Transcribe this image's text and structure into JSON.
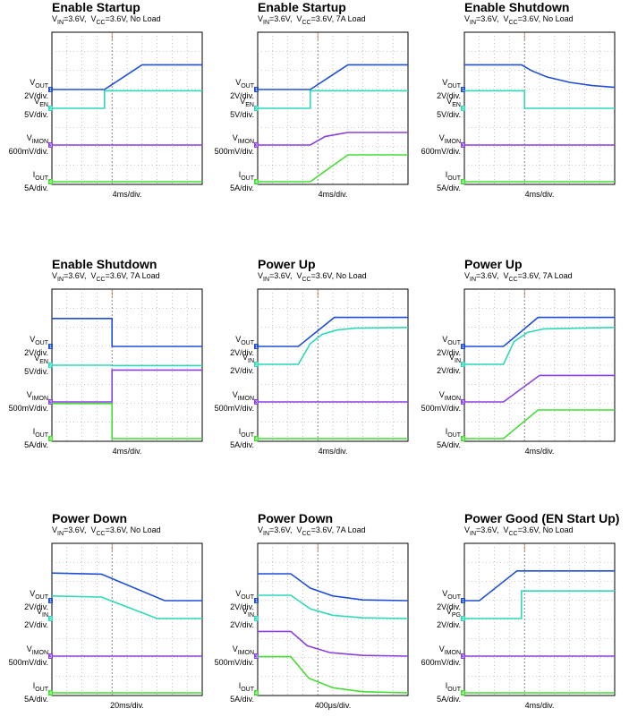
{
  "chart_data": [
    {
      "type": "line",
      "title": "Enable Startup",
      "subtitle": {
        "vin_sym": "V",
        "vin_sub": "IN",
        "vin_rest": "=3.6V,",
        "vcc_sym": "V",
        "vcc_sub": "CC",
        "vcc_rest": "=3.6V, No Load"
      },
      "xlabel": "4ms/div.",
      "x_divisions": 10,
      "channels": [
        {
          "sym": "V",
          "sub": "OUT",
          "scale": "2V/div.",
          "color": "#1f4fd6",
          "marker": "1",
          "level": 0.1,
          "points": [
            [
              0,
              0.1
            ],
            [
              3.5,
              0.1
            ],
            [
              6.0,
              0.79
            ],
            [
              10,
              0.79
            ]
          ]
        },
        {
          "sym": "V",
          "sub": "EN",
          "scale": "5V/div.",
          "color": "#2fd9b8",
          "marker": "2",
          "level": 0.31,
          "points": [
            [
              0,
              0.31
            ],
            [
              3.5,
              0.31
            ],
            [
              3.5,
              0.8
            ],
            [
              10,
              0.8
            ]
          ]
        },
        {
          "sym": "V",
          "sub": "IMON",
          "scale": "600mV/div.",
          "color": "#8a3fe0",
          "marker": "3",
          "level": 0.62,
          "points": [
            [
              0,
              0.62
            ],
            [
              10,
              0.62
            ]
          ]
        },
        {
          "sym": "I",
          "sub": "OUT",
          "scale": "5A/div.",
          "color": "#44dd33",
          "marker": "4",
          "level": 0.95,
          "points": [
            [
              0,
              0.95
            ],
            [
              10,
              0.95
            ]
          ]
        }
      ]
    },
    {
      "type": "line",
      "title": "Enable Startup",
      "subtitle": {
        "vin_sym": "V",
        "vin_sub": "IN",
        "vin_rest": "=3.6V,",
        "vcc_sym": "V",
        "vcc_sub": "CC",
        "vcc_rest": "=3.6V, 7A Load"
      },
      "xlabel": "4ms/div.",
      "x_divisions": 10,
      "channels": [
        {
          "sym": "V",
          "sub": "OUT",
          "scale": "2V/div.",
          "color": "#1f4fd6",
          "marker": "1",
          "level": 0.1,
          "points": [
            [
              0,
              0.1
            ],
            [
              3.5,
              0.1
            ],
            [
              6.0,
              0.79
            ],
            [
              10,
              0.79
            ]
          ]
        },
        {
          "sym": "V",
          "sub": "EN",
          "scale": "5V/div.",
          "color": "#2fd9b8",
          "marker": "2",
          "level": 0.31,
          "points": [
            [
              0,
              0.31
            ],
            [
              3.5,
              0.31
            ],
            [
              3.5,
              0.8
            ],
            [
              10,
              0.8
            ]
          ]
        },
        {
          "sym": "V",
          "sub": "IMON",
          "scale": "500mV/div.",
          "color": "#8a3fe0",
          "marker": "3",
          "level": 0.62,
          "points": [
            [
              0,
              0.62
            ],
            [
              3.5,
              0.62
            ],
            [
              4.5,
              0.86
            ],
            [
              6.0,
              0.97
            ],
            [
              10,
              0.97
            ]
          ]
        },
        {
          "sym": "I",
          "sub": "OUT",
          "scale": "5A/div.",
          "color": "#44dd33",
          "marker": "4",
          "level": 0.95,
          "points": [
            [
              0,
              0.95
            ],
            [
              3.5,
              0.95
            ],
            [
              6.0,
              1.7
            ],
            [
              10,
              1.7
            ]
          ]
        }
      ]
    },
    {
      "type": "line",
      "title": "Enable Shutdown",
      "subtitle": {
        "vin_sym": "V",
        "vin_sub": "IN",
        "vin_rest": "=3.6V,",
        "vcc_sym": "V",
        "vcc_sub": "CC",
        "vcc_rest": "=3.6V, No Load"
      },
      "xlabel": "4ms/div.",
      "x_divisions": 10,
      "channels": [
        {
          "sym": "V",
          "sub": "OUT",
          "scale": "2V/div.",
          "color": "#1f4fd6",
          "marker": "1",
          "level": 0.1,
          "points": [
            [
              0,
              0.79
            ],
            [
              3.8,
              0.79
            ],
            [
              4.5,
              0.62
            ],
            [
              5.5,
              0.45
            ],
            [
              7,
              0.3
            ],
            [
              8.5,
              0.21
            ],
            [
              10,
              0.16
            ]
          ]
        },
        {
          "sym": "V",
          "sub": "EN",
          "scale": "5V/div.",
          "color": "#2fd9b8",
          "marker": "2",
          "level": 0.31,
          "points": [
            [
              0,
              0.8
            ],
            [
              4.0,
              0.8
            ],
            [
              4.0,
              0.31
            ],
            [
              10,
              0.31
            ]
          ]
        },
        {
          "sym": "V",
          "sub": "IMON",
          "scale": "600mV/div.",
          "color": "#8a3fe0",
          "marker": "3",
          "level": 0.62,
          "points": [
            [
              0,
              0.62
            ],
            [
              10,
              0.62
            ]
          ]
        },
        {
          "sym": "I",
          "sub": "OUT",
          "scale": "5A/div.",
          "color": "#44dd33",
          "marker": "4",
          "level": 0.95,
          "points": [
            [
              0,
              0.95
            ],
            [
              10,
              0.95
            ]
          ]
        }
      ]
    },
    {
      "type": "line",
      "title": "Enable Shutdown",
      "subtitle": {
        "vin_sym": "V",
        "vin_sub": "IN",
        "vin_rest": "=3.6V,",
        "vcc_sym": "V",
        "vcc_sub": "CC",
        "vcc_rest": "=3.6V, 7A Load"
      },
      "xlabel": "4ms/div.",
      "x_divisions": 10,
      "channels": [
        {
          "sym": "V",
          "sub": "OUT",
          "scale": "2V/div.",
          "color": "#1f4fd6",
          "marker": "1",
          "level": 0.05,
          "points": [
            [
              0,
              0.83
            ],
            [
              4.0,
              0.83
            ],
            [
              4.0,
              0.05
            ],
            [
              10,
              0.05
            ]
          ]
        },
        {
          "sym": "V",
          "sub": "EN",
          "scale": "5V/div.",
          "color": "#2fd9b8",
          "marker": "2",
          "level": 0.05,
          "points": [
            [
              0,
              0.05
            ],
            [
              4.0,
              0.05
            ],
            [
              4.0,
              0.04
            ],
            [
              10,
              0.04
            ]
          ]
        },
        {
          "sym": "V",
          "sub": "IMON",
          "scale": "500mV/div.",
          "color": "#8a3fe0",
          "marker": "3",
          "level": -0.47,
          "points": [
            [
              0,
              -0.47
            ],
            [
              4.0,
              -0.47
            ],
            [
              4.0,
              0.42
            ],
            [
              10,
              0.42
            ]
          ]
        },
        {
          "sym": "I",
          "sub": "OUT",
          "scale": "5A/div.",
          "color": "#44dd33",
          "marker": "4",
          "level": -1.04,
          "points": [
            [
              0,
              -0.06
            ],
            [
              4.0,
              -0.06
            ],
            [
              4.0,
              -1.04
            ],
            [
              10,
              -1.04
            ]
          ]
        }
      ]
    },
    {
      "type": "line",
      "title": "Power Up",
      "subtitle": {
        "vin_sym": "V",
        "vin_sub": "IN",
        "vin_rest": "=3.6V,",
        "vcc_sym": "V",
        "vcc_sub": "CC",
        "vcc_rest": "=3.6V, No Load"
      },
      "xlabel": "4ms/div.",
      "x_divisions": 10,
      "channels": [
        {
          "sym": "V",
          "sub": "OUT",
          "scale": "2V/div.",
          "color": "#1f4fd6",
          "marker": "1",
          "level": 0.15,
          "points": [
            [
              0,
              0.15
            ],
            [
              2.7,
              0.15
            ],
            [
              5.1,
              0.96
            ],
            [
              10,
              0.96
            ]
          ]
        },
        {
          "sym": "V",
          "sub": "IN",
          "scale": "2V/div.",
          "color": "#2fd9b8",
          "marker": "2",
          "level": -0.38,
          "points": [
            [
              0,
              -0.38
            ],
            [
              2.7,
              -0.38
            ],
            [
              3.5,
              0.2
            ],
            [
              4.3,
              0.46
            ],
            [
              5.3,
              0.58
            ],
            [
              6.5,
              0.63
            ],
            [
              10,
              0.65
            ]
          ]
        },
        {
          "sym": "V",
          "sub": "IMON",
          "scale": "500mV/div.",
          "color": "#8a3fe0",
          "marker": "3",
          "level": 0.3,
          "points": [
            [
              0,
              0.3
            ],
            [
              10,
              0.3
            ]
          ]
        },
        {
          "sym": "I",
          "sub": "OUT",
          "scale": "5A/div.",
          "color": "#44dd33",
          "marker": "4",
          "level": 0.07,
          "points": [
            [
              0,
              0.07
            ],
            [
              10,
              0.07
            ]
          ]
        }
      ]
    },
    {
      "type": "line",
      "title": "Power Up",
      "subtitle": {
        "vin_sym": "V",
        "vin_sub": "IN",
        "vin_rest": "=3.6V,",
        "vcc_sym": "V",
        "vcc_sub": "CC",
        "vcc_rest": "=3.6V, 7A Load"
      },
      "xlabel": "4ms/div.",
      "x_divisions": 10,
      "channels": [
        {
          "sym": "V",
          "sub": "OUT",
          "scale": "2V/div.",
          "color": "#1f4fd6",
          "marker": "1",
          "level": 0.15,
          "points": [
            [
              0,
              0.15
            ],
            [
              2.6,
              0.15
            ],
            [
              4.9,
              0.96
            ],
            [
              10,
              0.96
            ]
          ]
        },
        {
          "sym": "V",
          "sub": "IN",
          "scale": "2V/div.",
          "color": "#2fd9b8",
          "marker": "2",
          "level": -0.38,
          "points": [
            [
              0,
              -0.38
            ],
            [
              2.6,
              -0.38
            ],
            [
              3.3,
              0.25
            ],
            [
              4.2,
              0.51
            ],
            [
              5.3,
              0.61
            ],
            [
              10,
              0.65
            ]
          ]
        },
        {
          "sym": "V",
          "sub": "IMON",
          "scale": "500mV/div.",
          "color": "#8a3fe0",
          "marker": "3",
          "level": 0.3,
          "points": [
            [
              0,
              0.3
            ],
            [
              2.6,
              0.3
            ],
            [
              5.0,
              1.04
            ],
            [
              10,
              1.04
            ]
          ]
        },
        {
          "sym": "I",
          "sub": "OUT",
          "scale": "5A/div.",
          "color": "#44dd33",
          "marker": "4",
          "level": 0.07,
          "points": [
            [
              0,
              0.07
            ],
            [
              2.6,
              0.07
            ],
            [
              4.9,
              0.87
            ],
            [
              10,
              0.87
            ]
          ]
        }
      ]
    },
    {
      "type": "line",
      "title": "Power Down",
      "subtitle": {
        "vin_sym": "V",
        "vin_sub": "IN",
        "vin_rest": "=3.6V,",
        "vcc_sym": "V",
        "vcc_sub": "CC",
        "vcc_rest": "=3.6V, No Load"
      },
      "xlabel": "20ms/div.",
      "x_divisions": 10,
      "channels": [
        {
          "sym": "V",
          "sub": "OUT",
          "scale": "2V/div.",
          "color": "#1f4fd6",
          "marker": "1",
          "level": 0.06,
          "points": [
            [
              0,
              0.83
            ],
            [
              3.3,
              0.8
            ],
            [
              7.5,
              0.06
            ],
            [
              10,
              0.06
            ]
          ]
        },
        {
          "sym": "V",
          "sub": "IN",
          "scale": "2V/div.",
          "color": "#2fd9b8",
          "marker": "2",
          "level": 0.04,
          "points": [
            [
              0,
              0.67
            ],
            [
              3.3,
              0.64
            ],
            [
              7.0,
              0.04
            ],
            [
              10,
              0.04
            ]
          ]
        },
        {
          "sym": "V",
          "sub": "IMON",
          "scale": "500mV/div.",
          "color": "#8a3fe0",
          "marker": "3",
          "level": 0.09,
          "points": [
            [
              0,
              0.09
            ],
            [
              10,
              0.09
            ]
          ]
        },
        {
          "sym": "I",
          "sub": "OUT",
          "scale": "5A/div.",
          "color": "#44dd33",
          "marker": "4",
          "level": 0.05,
          "points": [
            [
              0,
              0.05
            ],
            [
              10,
              0.05
            ]
          ]
        }
      ]
    },
    {
      "type": "line",
      "title": "Power Down",
      "subtitle": {
        "vin_sym": "V",
        "vin_sub": "IN",
        "vin_rest": "=3.6V,",
        "vcc_sym": "V",
        "vcc_sub": "CC",
        "vcc_rest": "=3.6V, 7A Load"
      },
      "xlabel": "400μs/div.",
      "x_divisions": 10,
      "channels": [
        {
          "sym": "V",
          "sub": "OUT",
          "scale": "2V/div.",
          "color": "#1f4fd6",
          "marker": "1",
          "level": 0.1,
          "points": [
            [
              0,
              0.85
            ],
            [
              2.2,
              0.85
            ],
            [
              3.5,
              0.45
            ],
            [
              5,
              0.23
            ],
            [
              7,
              0.12
            ],
            [
              10,
              0.1
            ]
          ]
        },
        {
          "sym": "V",
          "sub": "IN",
          "scale": "2V/div.",
          "color": "#2fd9b8",
          "marker": "2",
          "level": 0.03,
          "points": [
            [
              0,
              0.68
            ],
            [
              2.2,
              0.68
            ],
            [
              3.5,
              0.3
            ],
            [
              5,
              0.12
            ],
            [
              7,
              0.05
            ],
            [
              10,
              0.03
            ]
          ]
        },
        {
          "sym": "V",
          "sub": "IMON",
          "scale": "500mV/div.",
          "color": "#8a3fe0",
          "marker": "3",
          "level": 0.06,
          "points": [
            [
              0,
              0.75
            ],
            [
              2.2,
              0.75
            ],
            [
              3.3,
              0.35
            ],
            [
              4.8,
              0.16
            ],
            [
              7,
              0.08
            ],
            [
              10,
              0.06
            ]
          ]
        },
        {
          "sym": "I",
          "sub": "OUT",
          "scale": "5A/div.",
          "color": "#44dd33",
          "marker": "4",
          "level": 0.04,
          "points": [
            [
              0,
              1.05
            ],
            [
              2.2,
              1.05
            ],
            [
              3.4,
              0.45
            ],
            [
              5,
              0.18
            ],
            [
              7,
              0.07
            ],
            [
              10,
              0.04
            ]
          ]
        }
      ]
    },
    {
      "type": "line",
      "title": "Power Good (EN Start Up)",
      "subtitle": {
        "vin_sym": "V",
        "vin_sub": "IN",
        "vin_rest": "=3.6V,",
        "vcc_sym": "V",
        "vcc_sub": "CC",
        "vcc_rest": "=3.6V, No Load"
      },
      "xlabel": "4ms/div.",
      "x_divisions": 10,
      "channels": [
        {
          "sym": "V",
          "sub": "OUT",
          "scale": "2V/div.",
          "color": "#1f4fd6",
          "marker": "1",
          "level": 0.1,
          "points": [
            [
              0,
              0.1
            ],
            [
              1.0,
              0.1
            ],
            [
              3.5,
              0.93
            ],
            [
              10,
              0.93
            ]
          ]
        },
        {
          "sym": "V",
          "sub": "PG",
          "scale": "2V/div.",
          "color": "#2fd9b8",
          "marker": "2",
          "level": -0.16,
          "points": [
            [
              0,
              -0.16
            ],
            [
              3.8,
              -0.16
            ],
            [
              3.8,
              0.61
            ],
            [
              10,
              0.61
            ]
          ]
        },
        {
          "sym": "V",
          "sub": "IMON",
          "scale": "600mV/div.",
          "color": "#8a3fe0",
          "marker": "3",
          "level": 0.09,
          "points": [
            [
              0,
              0.09
            ],
            [
              10,
              0.09
            ]
          ]
        },
        {
          "sym": "I",
          "sub": "OUT",
          "scale": "5A/div.",
          "color": "#44dd33",
          "marker": "4",
          "level": 0.05,
          "points": [
            [
              0,
              0.05
            ],
            [
              10,
              0.05
            ]
          ]
        }
      ]
    }
  ]
}
